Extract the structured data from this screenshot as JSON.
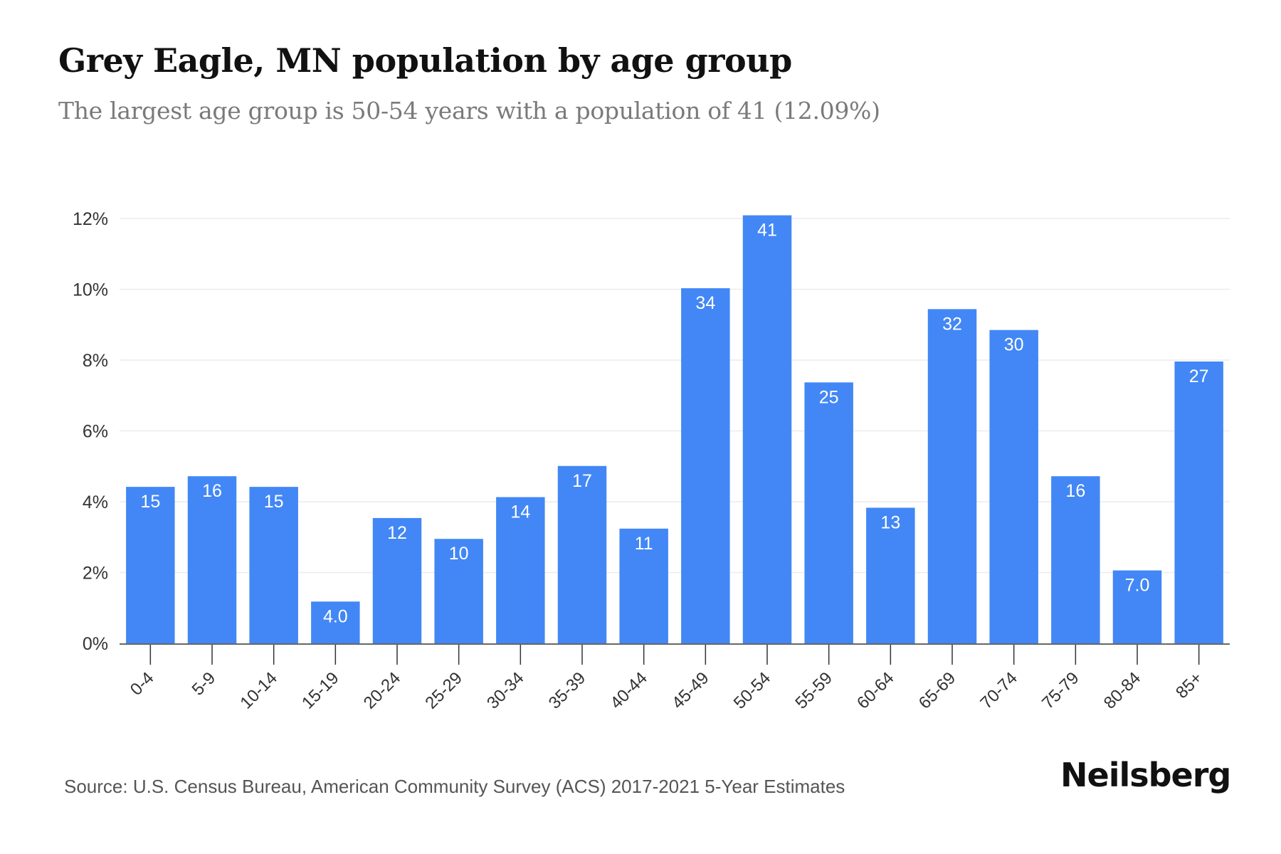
{
  "title": "Grey Eagle, MN population by age group",
  "subtitle": "The largest age group is 50-54 years with a population of 41 (12.09%)",
  "source": "Source: U.S. Census Bureau, American Community Survey (ACS) 2017-2021 5-Year Estimates",
  "brand": "Neilsberg",
  "colors": {
    "bar": "#4287f5",
    "label": "#ffffff",
    "grid": "#ececec",
    "axis": "#333333"
  },
  "chart_data": {
    "type": "bar",
    "categories": [
      "0-4",
      "5-9",
      "10-14",
      "15-19",
      "20-24",
      "25-29",
      "30-34",
      "35-39",
      "40-44",
      "45-49",
      "50-54",
      "55-59",
      "60-64",
      "65-69",
      "70-74",
      "75-79",
      "80-84",
      "85+"
    ],
    "values": [
      4.42,
      4.72,
      4.42,
      1.18,
      3.54,
      2.95,
      4.13,
      5.01,
      3.24,
      10.03,
      12.09,
      7.37,
      3.83,
      9.44,
      8.85,
      4.72,
      2.06,
      7.96
    ],
    "data_labels": [
      "15",
      "16",
      "15",
      "4.0",
      "12",
      "10",
      "14",
      "17",
      "11",
      "34",
      "41",
      "25",
      "13",
      "32",
      "30",
      "16",
      "7.0",
      "27"
    ],
    "y_ticks": [
      "0%",
      "2%",
      "4%",
      "6%",
      "8%",
      "10%",
      "12%"
    ],
    "y_tick_values": [
      0,
      2,
      4,
      6,
      8,
      10,
      12
    ],
    "ylim": [
      0,
      12
    ],
    "grid": true,
    "legend": "none"
  }
}
